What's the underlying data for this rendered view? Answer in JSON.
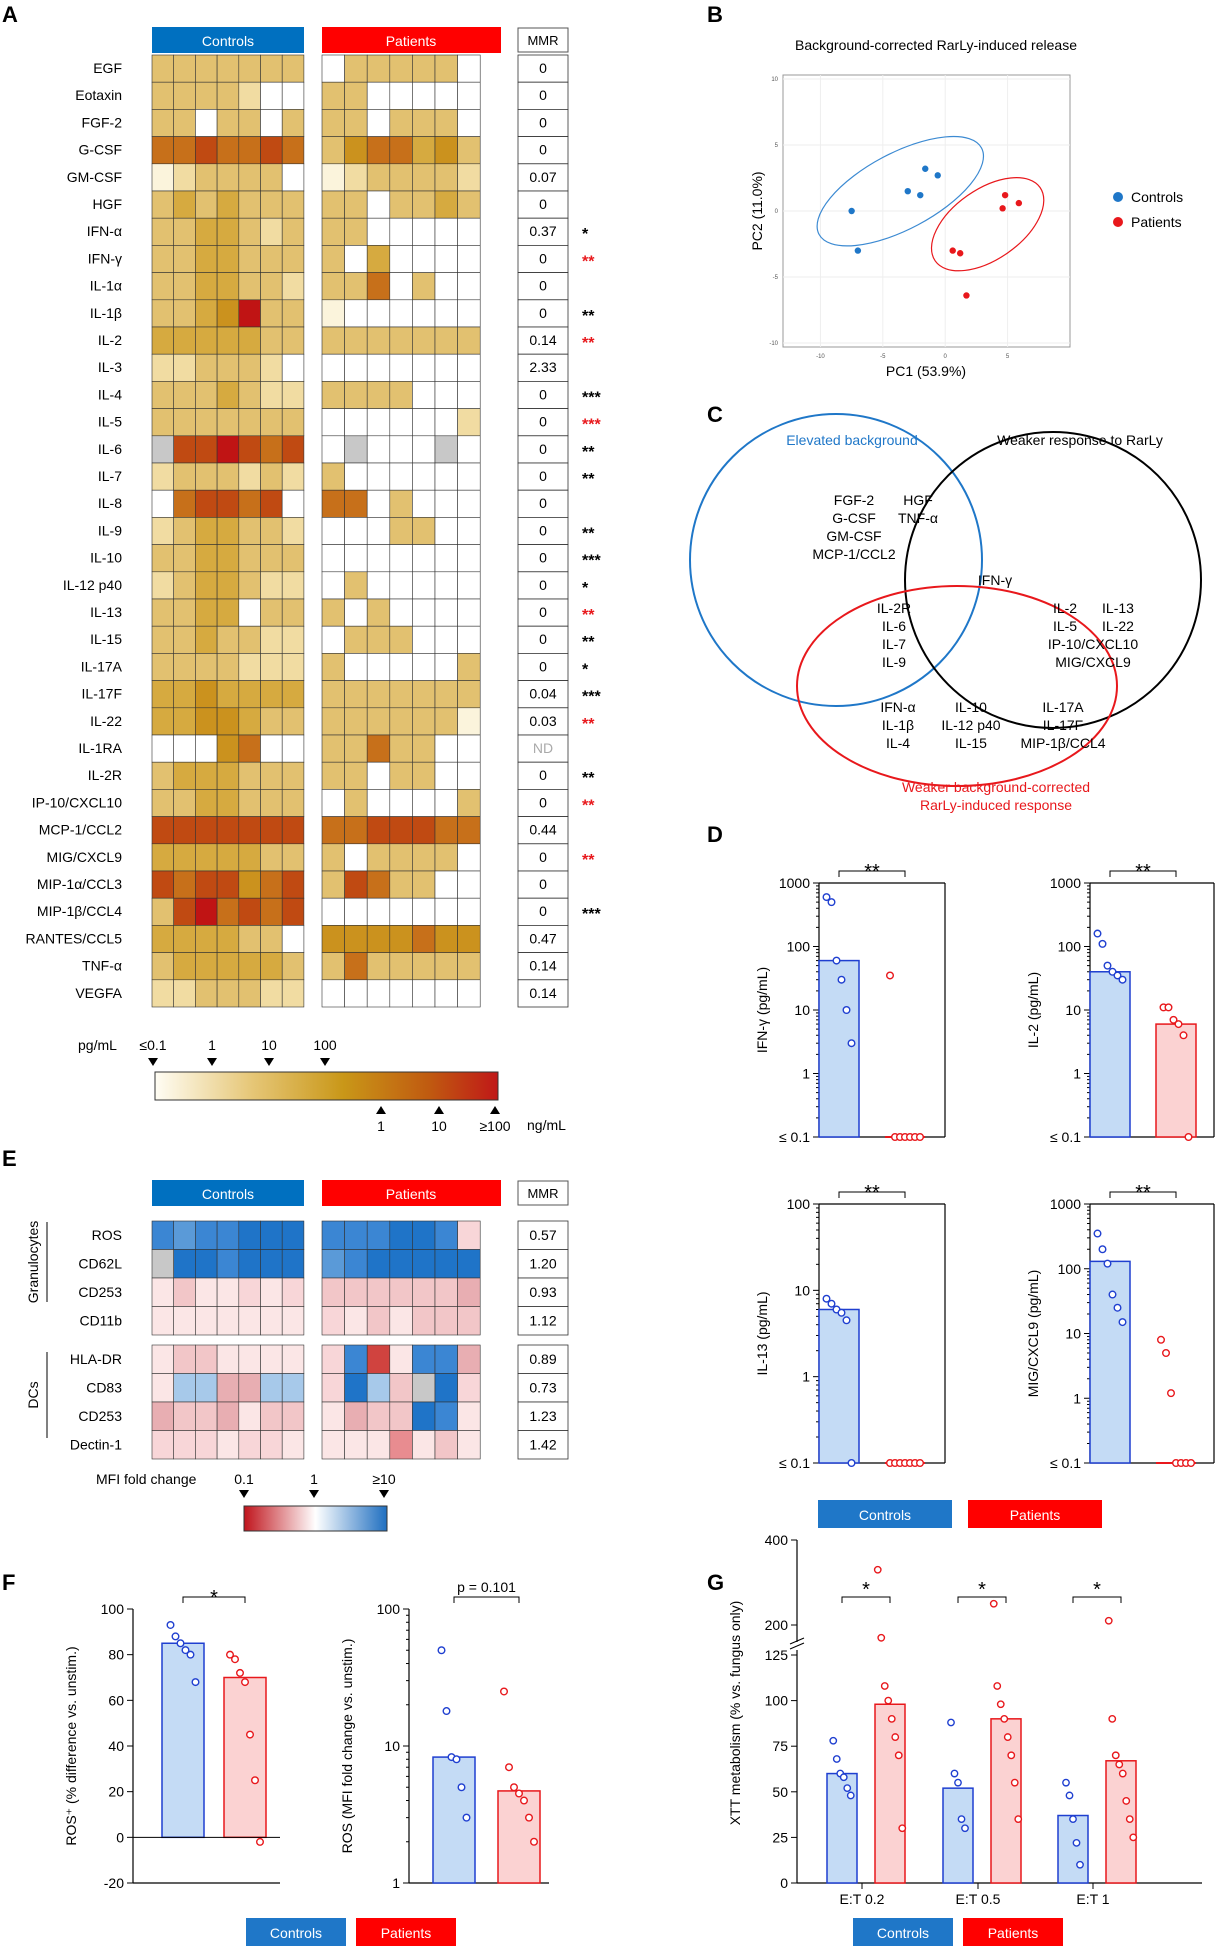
{
  "panel_letters": {
    "A": "A",
    "B": "B",
    "C": "C",
    "D": "D",
    "E": "E",
    "F": "F",
    "G": "G"
  },
  "group_labels": {
    "controls": "Controls",
    "patients": "Patients"
  },
  "colors": {
    "controls": "#0070c0",
    "patients": "#ff0000",
    "sig_black": "#000000",
    "sig_red": "#e8181c",
    "nd_gray": "#aaaaaa"
  },
  "panelA": {
    "mmr_header": "MMR",
    "rows": [
      "EGF",
      "Eotaxin",
      "FGF-2",
      "G-CSF",
      "GM-CSF",
      "HGF",
      "IFN-α",
      "IFN-γ",
      "IL-1α",
      "IL-1β",
      "IL-2",
      "IL-3",
      "IL-4",
      "IL-5",
      "IL-6",
      "IL-7",
      "IL-8",
      "IL-9",
      "IL-10",
      "IL-12 p40",
      "IL-13",
      "IL-15",
      "IL-17A",
      "IL-17F",
      "IL-22",
      "IL-1RA",
      "IL-2R",
      "IP-10/CXCL10",
      "MCP-1/CCL2",
      "MIG/CXCL9",
      "MIP-1α/CCL3",
      "MIP-1β/CCL4",
      "RANTES/CCL5",
      "TNF-α",
      "VEGFA"
    ],
    "mmr": [
      "0",
      "0",
      "0",
      "0",
      "0.07",
      "0",
      "0.37",
      "0",
      "0",
      "0",
      "0.14",
      "2.33",
      "0",
      "0",
      "0",
      "0",
      "0",
      "0",
      "0",
      "0",
      "0",
      "0",
      "0",
      "0.04",
      "0.03",
      "ND",
      "0",
      "0",
      "0.44",
      "0",
      "0",
      "0",
      "0.47",
      "0.14",
      "0.14"
    ],
    "sig": [
      "",
      "",
      "",
      "",
      "",
      "",
      "*",
      "**",
      "",
      "**",
      "**",
      "",
      "***",
      "***",
      "**",
      "**",
      "",
      "**",
      "***",
      "*",
      "**",
      "**",
      "*",
      "***",
      "**",
      "",
      "**",
      "**",
      "",
      "**",
      "",
      "***",
      "",
      "",
      ""
    ],
    "sig_red": [
      false,
      false,
      false,
      false,
      false,
      false,
      false,
      true,
      false,
      false,
      true,
      false,
      false,
      true,
      false,
      false,
      false,
      false,
      false,
      false,
      true,
      false,
      false,
      false,
      true,
      false,
      false,
      true,
      false,
      true,
      false,
      false,
      false,
      false,
      false
    ],
    "controls_heat": [
      "3333333",
      "3333200",
      "3303303",
      "6676676",
      "1233330",
      "3434333",
      "3344323",
      "3344333",
      "3344332",
      "3345833",
      "4444433",
      "2233320",
      "3334322",
      "3333333",
      "X778767",
      "2333232",
      "0677670",
      "2344332",
      "3344333",
      "2344322",
      "3344033",
      "3343322",
      "3333222",
      "4454444",
      "4455433",
      "0005600",
      "3444333",
      "3344333",
      "7777777",
      "4444433",
      "7677567",
      "3786767",
      "4444330",
      "3444443",
      "2233322"
    ],
    "patients_heat": [
      "0333330",
      "3300000",
      "3303330",
      "3566453",
      "1233332",
      "3303343",
      "3300000",
      "3040000",
      "3360300",
      "1000000",
      "3333333",
      "0000000",
      "3333000",
      "0000002",
      "0X000X0",
      "3000000",
      "6603000",
      "0003300",
      "0000000",
      "0300000",
      "3030000",
      "0333000",
      "3000003",
      "3333333",
      "3333331",
      "3363300",
      "3303300",
      "0300003",
      "6677766X",
      "3033330",
      "3763300",
      "0000000",
      "5555655",
      "3633333",
      "0000000"
    ],
    "legend": {
      "unit_left": "pg/mL",
      "unit_right": "ng/mL",
      "top_ticks": [
        "≤0.1",
        "1",
        "10",
        "100"
      ],
      "bottom_ticks": [
        "1",
        "10",
        "≥100"
      ]
    }
  },
  "panelB": {
    "title": "Background-corrected RarLy-induced release",
    "xlabel": "PC1 (53.9%)",
    "ylabel": "PC2 (11.0%)"
  },
  "panelC": {
    "label_blue": "Elevated background",
    "label_black": "Weaker response to RarLy",
    "label_red_1": "Weaker background-corrected",
    "label_red_2": "RarLy-induced response",
    "blue_only": [
      "FGF-2",
      "HGF",
      "G-CSF",
      "TNF-α",
      "GM-CSF",
      "MCP-1/CCL2"
    ],
    "center": "IFN-γ",
    "blue_red": [
      "IL-2R",
      "IL-6",
      "IL-7",
      "IL-9"
    ],
    "black_red": [
      "IL-2",
      "IL-13",
      "IL-5",
      "IL-22",
      "IP-10/CXCL10",
      "MIG/CXCL9"
    ],
    "red_only": [
      "IFN-α",
      "IL-10",
      "IL-17A",
      "IL-1β",
      "IL-12 p40",
      "IL-17F",
      "IL-4",
      "IL-15",
      "MIP-1β/CCL4"
    ]
  },
  "panelE": {
    "mmr_header": "MMR",
    "group_granulocytes": "Granulocytes",
    "group_dcs": "DCs",
    "gran_rows": [
      "ROS",
      "CD62L",
      "CD253",
      "CD11b"
    ],
    "gran_mmr": [
      "0.57",
      "1.20",
      "0.93",
      "1.12"
    ],
    "dc_rows": [
      "HLA-DR",
      "CD83",
      "CD253",
      "Dectin-1"
    ],
    "dc_mmr": [
      "0.89",
      "0.73",
      "1.23",
      "1.42"
    ],
    "gran_controls": [
      "8788999",
      "X998999",
      "1011212",
      "1111111"
    ],
    "gran_patients": [
      "8889982",
      "7899999",
      "0000004",
      "2101000"
    ],
    "dc_controls": [
      "1001111",
      "1554455",
      "4004100",
      "2221221"
    ],
    "dc_patients": [
      "2861884",
      "2950X92",
      "1400981",
      "1113101"
    ],
    "legend": {
      "label": "MFI fold change",
      "ticks": [
        "0.1",
        "1",
        "≥10"
      ]
    }
  },
  "chart_data": [
    {
      "type": "bar",
      "title": "IFN-γ",
      "ylabel": "IFN-γ (pg/mL)",
      "scale": "log",
      "ylim": [
        0.1,
        1000
      ],
      "y_tick_labels": [
        "≤ 0.1",
        "1",
        "10",
        "100",
        "1000"
      ],
      "significance": "**",
      "series": [
        {
          "name": "Controls",
          "bar": 60,
          "points": [
            600,
            500,
            60,
            30,
            10,
            3
          ]
        },
        {
          "name": "Patients",
          "bar": 0.1,
          "points": [
            35,
            0.1,
            0.1,
            0.1,
            0.1,
            0.1,
            0.1
          ]
        }
      ]
    },
    {
      "type": "bar",
      "title": "IL-2",
      "ylabel": "IL-2 (pg/mL)",
      "scale": "log",
      "ylim": [
        0.1,
        1000
      ],
      "y_tick_labels": [
        "≤ 0.1",
        "1",
        "10",
        "100",
        "1000"
      ],
      "significance": "**",
      "series": [
        {
          "name": "Controls",
          "bar": 40,
          "points": [
            160,
            110,
            50,
            40,
            35,
            30
          ]
        },
        {
          "name": "Patients",
          "bar": 6,
          "points": [
            11,
            11,
            7,
            6,
            4,
            0.1
          ]
        }
      ]
    },
    {
      "type": "bar",
      "title": "IL-13",
      "ylabel": "IL-13 (pg/mL)",
      "scale": "log",
      "ylim": [
        0.1,
        100
      ],
      "y_tick_labels": [
        "≤ 0.1",
        "1",
        "10",
        "100"
      ],
      "significance": "**",
      "series": [
        {
          "name": "Controls",
          "bar": 6,
          "points": [
            8,
            7,
            6,
            5.5,
            4.5,
            0.1
          ]
        },
        {
          "name": "Patients",
          "bar": 0.1,
          "points": [
            0.1,
            0.1,
            0.1,
            0.1,
            0.1,
            0.1,
            0.1
          ]
        }
      ]
    },
    {
      "type": "bar",
      "title": "MIG/CXCL9",
      "ylabel": "MIG/CXCL9 (pg/mL)",
      "scale": "log",
      "ylim": [
        0.1,
        1000
      ],
      "y_tick_labels": [
        "≤ 0.1",
        "1",
        "10",
        "100",
        "1000"
      ],
      "significance": "**",
      "series": [
        {
          "name": "Controls",
          "bar": 130,
          "points": [
            350,
            200,
            120,
            40,
            25,
            15
          ]
        },
        {
          "name": "Patients",
          "bar": 0.1,
          "points": [
            8,
            5,
            1.2,
            0.1,
            0.1,
            0.1,
            0.1
          ]
        }
      ]
    },
    {
      "type": "bar",
      "title": "ROS+",
      "ylabel": "ROS⁺ (% difference vs. unstim.)",
      "scale": "linear",
      "ylim": [
        -20,
        100
      ],
      "y_tick_labels": [
        "-20",
        "0",
        "20",
        "40",
        "60",
        "80",
        "100"
      ],
      "significance": "*",
      "series": [
        {
          "name": "Controls",
          "bar": 85,
          "points": [
            93,
            88,
            85,
            82,
            80,
            68
          ]
        },
        {
          "name": "Patients",
          "bar": 70,
          "points": [
            80,
            78,
            72,
            68,
            45,
            25,
            -2
          ]
        }
      ]
    },
    {
      "type": "bar",
      "title": "ROS MFI",
      "ylabel": "ROS (MFI fold change vs. unstim.)",
      "scale": "log",
      "ylim": [
        1,
        100
      ],
      "y_tick_labels": [
        "1",
        "10",
        "100"
      ],
      "significance": "p = 0.101",
      "series": [
        {
          "name": "Controls",
          "bar": 8.3,
          "points": [
            50,
            18,
            8.3,
            8,
            5,
            3
          ]
        },
        {
          "name": "Patients",
          "bar": 4.7,
          "points": [
            25,
            7,
            5,
            4.5,
            4,
            3,
            2
          ]
        }
      ]
    },
    {
      "type": "bar",
      "title": "XTT metabolism",
      "ylabel": "XTT metabolism (% vs. fungus only)",
      "categories": [
        "E:T 0.2",
        "E:T 0.5",
        "E:T 1"
      ],
      "ylim": [
        0,
        400
      ],
      "y_tick_labels": [
        "0",
        "25",
        "50",
        "75",
        "100",
        "125",
        "200",
        "400"
      ],
      "significance": [
        "*",
        "*",
        "*"
      ],
      "series": [
        {
          "name": "Controls",
          "values": [
            60,
            52,
            37
          ],
          "points": [
            [
              78,
              68,
              60,
              58,
              52,
              48
            ],
            [
              88,
              60,
              55,
              35,
              30
            ],
            [
              55,
              48,
              35,
              22,
              10
            ]
          ]
        },
        {
          "name": "Patients",
          "values": [
            98,
            90,
            67
          ],
          "points": [
            [
              330,
              168,
              108,
              100,
              90,
              80,
              70,
              30
            ],
            [
              250,
              108,
              98,
              90,
              80,
              70,
              55,
              35
            ],
            [
              210,
              90,
              70,
              65,
              60,
              45,
              35,
              25
            ]
          ]
        }
      ]
    }
  ],
  "legend_boxes": {
    "controls": "Controls",
    "patients": "Patients"
  }
}
